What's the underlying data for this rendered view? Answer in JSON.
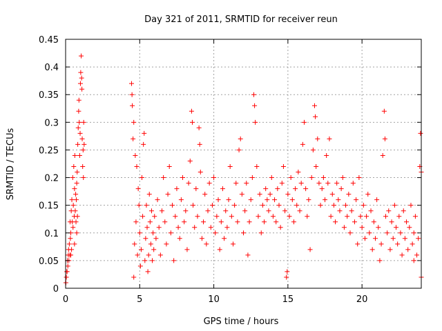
{
  "chart_data": {
    "type": "scatter",
    "title": "Day 321 of 2011, SRMTID for receiver reun",
    "xlabel": "GPS time / hours",
    "ylabel": "SRMTID / TECUs",
    "xlim": [
      0,
      24
    ],
    "ylim": [
      0,
      0.45
    ],
    "x_ticks": [
      0,
      5,
      10,
      15,
      20
    ],
    "x_tick_labels": [
      "0",
      "5",
      "10",
      "15",
      "20"
    ],
    "y_ticks": [
      0,
      0.05,
      0.1,
      0.15,
      0.2,
      0.25,
      0.3,
      0.35,
      0.4,
      0.45
    ],
    "y_tick_labels": [
      "0",
      "0.05",
      "0.1",
      "0.15",
      "0.2",
      "0.25",
      "0.3",
      "0.35",
      "0.4",
      "0.45"
    ],
    "grid": true,
    "marker": "+",
    "color": "#ff0000",
    "series": [
      {
        "name": "SRMTID",
        "points": [
          [
            0.02,
            0.01
          ],
          [
            0.05,
            0.02
          ],
          [
            0.08,
            0.03
          ],
          [
            0.12,
            0.05
          ],
          [
            0.15,
            0.04
          ],
          [
            0.18,
            0.06
          ],
          [
            0.2,
            0.07
          ],
          [
            0.22,
            0.05
          ],
          [
            0.25,
            0.08
          ],
          [
            0.28,
            0.06
          ],
          [
            0.3,
            0.12
          ],
          [
            0.32,
            0.09
          ],
          [
            0.35,
            0.1
          ],
          [
            0.38,
            0.14
          ],
          [
            0.4,
            0.07
          ],
          [
            0.42,
            0.16
          ],
          [
            0.45,
            0.12
          ],
          [
            0.48,
            0.2
          ],
          [
            0.5,
            0.11
          ],
          [
            0.52,
            0.15
          ],
          [
            0.55,
            0.22
          ],
          [
            0.58,
            0.13
          ],
          [
            0.6,
            0.18
          ],
          [
            0.62,
            0.24
          ],
          [
            0.65,
            0.14
          ],
          [
            0.68,
            0.17
          ],
          [
            0.7,
            0.12
          ],
          [
            0.72,
            0.16
          ],
          [
            0.75,
            0.19
          ],
          [
            0.78,
            0.21
          ],
          [
            0.8,
            0.13
          ],
          [
            0.82,
            0.26
          ],
          [
            0.85,
            0.29
          ],
          [
            0.88,
            0.32
          ],
          [
            0.9,
            0.34
          ],
          [
            0.92,
            0.3
          ],
          [
            0.95,
            0.24
          ],
          [
            0.98,
            0.28
          ],
          [
            1.0,
            0.37
          ],
          [
            1.02,
            0.39
          ],
          [
            1.05,
            0.42
          ],
          [
            1.08,
            0.38
          ],
          [
            1.1,
            0.36
          ],
          [
            1.12,
            0.27
          ],
          [
            1.15,
            0.22
          ],
          [
            1.18,
            0.25
          ],
          [
            1.2,
            0.2
          ],
          [
            1.22,
            0.3
          ],
          [
            1.25,
            0.26
          ],
          [
            0.1,
            0.03
          ],
          [
            0.35,
            0.06
          ],
          [
            0.6,
            0.08
          ],
          [
            0.75,
            0.1
          ],
          [
            4.45,
            0.37
          ],
          [
            4.48,
            0.35
          ],
          [
            4.5,
            0.33
          ],
          [
            4.55,
            0.27
          ],
          [
            4.6,
            0.3
          ],
          [
            4.7,
            0.24
          ],
          [
            4.8,
            0.22
          ],
          [
            4.9,
            0.18
          ],
          [
            4.6,
            0.02
          ],
          [
            4.65,
            0.08
          ],
          [
            4.75,
            0.12
          ],
          [
            4.85,
            0.06
          ],
          [
            4.95,
            0.15
          ],
          [
            5.0,
            0.1
          ],
          [
            5.05,
            0.04
          ],
          [
            5.1,
            0.07
          ],
          [
            5.15,
            0.2
          ],
          [
            5.2,
            0.13
          ],
          [
            5.25,
            0.26
          ],
          [
            5.3,
            0.28
          ],
          [
            5.35,
            0.05
          ],
          [
            5.4,
            0.09
          ],
          [
            5.45,
            0.15
          ],
          [
            5.5,
            0.11
          ],
          [
            5.55,
            0.03
          ],
          [
            5.6,
            0.06
          ],
          [
            5.65,
            0.17
          ],
          [
            5.7,
            0.12
          ],
          [
            5.75,
            0.08
          ],
          [
            5.8,
            0.14
          ],
          [
            5.85,
            0.05
          ],
          [
            5.9,
            0.1
          ],
          [
            5.95,
            0.07
          ],
          [
            6.0,
            0.13
          ],
          [
            6.1,
            0.09
          ],
          [
            6.2,
            0.16
          ],
          [
            6.3,
            0.11
          ],
          [
            6.4,
            0.06
          ],
          [
            6.5,
            0.14
          ],
          [
            6.6,
            0.2
          ],
          [
            6.7,
            0.12
          ],
          [
            6.8,
            0.08
          ],
          [
            6.9,
            0.17
          ],
          [
            7.0,
            0.22
          ],
          [
            7.1,
            0.1
          ],
          [
            7.2,
            0.15
          ],
          [
            7.3,
            0.05
          ],
          [
            7.4,
            0.13
          ],
          [
            7.5,
            0.18
          ],
          [
            7.6,
            0.11
          ],
          [
            7.7,
            0.09
          ],
          [
            7.8,
            0.16
          ],
          [
            7.9,
            0.2
          ],
          [
            8.0,
            0.12
          ],
          [
            8.1,
            0.14
          ],
          [
            8.2,
            0.07
          ],
          [
            8.3,
            0.19
          ],
          [
            8.4,
            0.23
          ],
          [
            8.5,
            0.32
          ],
          [
            8.55,
            0.3
          ],
          [
            8.6,
            0.15
          ],
          [
            8.7,
            0.11
          ],
          [
            8.8,
            0.18
          ],
          [
            8.9,
            0.13
          ],
          [
            9.0,
            0.29
          ],
          [
            9.05,
            0.26
          ],
          [
            9.1,
            0.21
          ],
          [
            9.2,
            0.09
          ],
          [
            9.3,
            0.12
          ],
          [
            9.4,
            0.17
          ],
          [
            9.5,
            0.08
          ],
          [
            9.6,
            0.14
          ],
          [
            9.7,
            0.19
          ],
          [
            9.8,
            0.11
          ],
          [
            9.9,
            0.15
          ],
          [
            10.0,
            0.2
          ],
          [
            10.1,
            0.1
          ],
          [
            10.2,
            0.13
          ],
          [
            10.3,
            0.16
          ],
          [
            10.4,
            0.07
          ],
          [
            10.5,
            0.12
          ],
          [
            10.6,
            0.18
          ],
          [
            10.7,
            0.09
          ],
          [
            10.8,
            0.14
          ],
          [
            10.9,
            0.11
          ],
          [
            11.0,
            0.16
          ],
          [
            11.1,
            0.22
          ],
          [
            11.2,
            0.13
          ],
          [
            11.3,
            0.08
          ],
          [
            11.4,
            0.15
          ],
          [
            11.5,
            0.19
          ],
          [
            11.6,
            0.12
          ],
          [
            11.7,
            0.25
          ],
          [
            11.8,
            0.27
          ],
          [
            11.9,
            0.17
          ],
          [
            12.0,
            0.1
          ],
          [
            12.1,
            0.14
          ],
          [
            12.2,
            0.19
          ],
          [
            12.3,
            0.06
          ],
          [
            12.4,
            0.12
          ],
          [
            12.5,
            0.16
          ],
          [
            12.6,
            0.2
          ],
          [
            12.7,
            0.35
          ],
          [
            12.75,
            0.33
          ],
          [
            12.8,
            0.3
          ],
          [
            12.9,
            0.22
          ],
          [
            13.0,
            0.13
          ],
          [
            13.1,
            0.17
          ],
          [
            13.2,
            0.1
          ],
          [
            13.3,
            0.15
          ],
          [
            13.4,
            0.12
          ],
          [
            13.5,
            0.18
          ],
          [
            13.6,
            0.16
          ],
          [
            13.7,
            0.14
          ],
          [
            13.8,
            0.17
          ],
          [
            13.9,
            0.2
          ],
          [
            14.0,
            0.13
          ],
          [
            14.1,
            0.16
          ],
          [
            14.2,
            0.12
          ],
          [
            14.3,
            0.18
          ],
          [
            14.4,
            0.15
          ],
          [
            14.5,
            0.11
          ],
          [
            14.6,
            0.19
          ],
          [
            14.7,
            0.22
          ],
          [
            14.8,
            0.14
          ],
          [
            14.9,
            0.02
          ],
          [
            14.95,
            0.03
          ],
          [
            15.0,
            0.17
          ],
          [
            15.1,
            0.13
          ],
          [
            15.2,
            0.2
          ],
          [
            15.3,
            0.16
          ],
          [
            15.4,
            0.12
          ],
          [
            15.5,
            0.18
          ],
          [
            15.6,
            0.15
          ],
          [
            15.7,
            0.21
          ],
          [
            15.8,
            0.14
          ],
          [
            15.9,
            0.19
          ],
          [
            16.0,
            0.26
          ],
          [
            16.1,
            0.3
          ],
          [
            16.2,
            0.18
          ],
          [
            16.3,
            0.13
          ],
          [
            16.4,
            0.16
          ],
          [
            16.5,
            0.07
          ],
          [
            16.6,
            0.2
          ],
          [
            16.7,
            0.25
          ],
          [
            16.8,
            0.33
          ],
          [
            16.85,
            0.31
          ],
          [
            16.9,
            0.22
          ],
          [
            17.0,
            0.27
          ],
          [
            17.1,
            0.19
          ],
          [
            17.2,
            0.15
          ],
          [
            17.3,
            0.18
          ],
          [
            17.4,
            0.2
          ],
          [
            17.5,
            0.16
          ],
          [
            17.6,
            0.24
          ],
          [
            17.7,
            0.19
          ],
          [
            17.8,
            0.27
          ],
          [
            17.9,
            0.13
          ],
          [
            18.0,
            0.17
          ],
          [
            18.1,
            0.15
          ],
          [
            18.2,
            0.12
          ],
          [
            18.3,
            0.19
          ],
          [
            18.4,
            0.16
          ],
          [
            18.5,
            0.14
          ],
          [
            18.6,
            0.18
          ],
          [
            18.7,
            0.2
          ],
          [
            18.8,
            0.11
          ],
          [
            18.9,
            0.15
          ],
          [
            19.0,
            0.13
          ],
          [
            19.1,
            0.17
          ],
          [
            19.2,
            0.1
          ],
          [
            19.3,
            0.14
          ],
          [
            19.4,
            0.19
          ],
          [
            19.5,
            0.12
          ],
          [
            19.6,
            0.16
          ],
          [
            19.7,
            0.08
          ],
          [
            19.8,
            0.2
          ],
          [
            19.9,
            0.13
          ],
          [
            20.0,
            0.11
          ],
          [
            20.1,
            0.15
          ],
          [
            20.2,
            0.09
          ],
          [
            20.3,
            0.13
          ],
          [
            20.4,
            0.17
          ],
          [
            20.5,
            0.1
          ],
          [
            20.6,
            0.14
          ],
          [
            20.7,
            0.07
          ],
          [
            20.8,
            0.12
          ],
          [
            20.9,
            0.09
          ],
          [
            21.0,
            0.16
          ],
          [
            21.1,
            0.11
          ],
          [
            21.2,
            0.05
          ],
          [
            21.3,
            0.08
          ],
          [
            21.4,
            0.24
          ],
          [
            21.5,
            0.32
          ],
          [
            21.55,
            0.27
          ],
          [
            21.6,
            0.13
          ],
          [
            21.7,
            0.1
          ],
          [
            21.8,
            0.14
          ],
          [
            21.9,
            0.07
          ],
          [
            22.0,
            0.12
          ],
          [
            22.1,
            0.09
          ],
          [
            22.2,
            0.15
          ],
          [
            22.3,
            0.11
          ],
          [
            22.4,
            0.08
          ],
          [
            22.5,
            0.13
          ],
          [
            22.6,
            0.1
          ],
          [
            22.7,
            0.06
          ],
          [
            22.8,
            0.14
          ],
          [
            22.9,
            0.09
          ],
          [
            23.0,
            0.12
          ],
          [
            23.1,
            0.07
          ],
          [
            23.2,
            0.11
          ],
          [
            23.3,
            0.15
          ],
          [
            23.4,
            0.08
          ],
          [
            23.5,
            0.1
          ],
          [
            23.6,
            0.13
          ],
          [
            23.7,
            0.06
          ],
          [
            23.8,
            0.09
          ],
          [
            23.9,
            0.22
          ],
          [
            24.0,
            0.21
          ],
          [
            23.95,
            0.28
          ],
          [
            24.0,
            0.02
          ],
          [
            23.5,
            0.05
          ]
        ]
      }
    ]
  }
}
